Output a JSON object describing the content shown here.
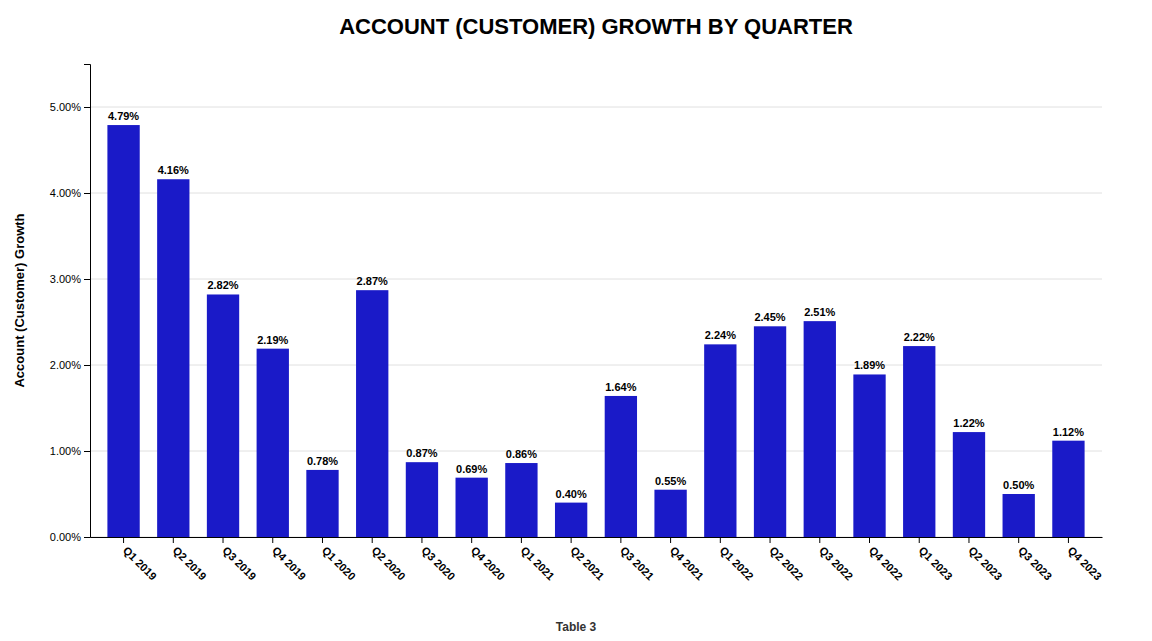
{
  "chart_data": {
    "type": "bar",
    "title": "ACCOUNT (CUSTOMER) GROWTH BY QUARTER",
    "ylabel": "Account (Customer) Growth",
    "annotations": [
      "Table 3"
    ],
    "categories": [
      "Q1 2019",
      "Q2 2019",
      "Q3 2019",
      "Q4 2019",
      "Q1 2020",
      "Q2 2020",
      "Q3 2020",
      "Q4 2020",
      "Q1 2021",
      "Q2 2021",
      "Q3 2021",
      "Q4 2021",
      "Q1 2022",
      "Q2 2022",
      "Q3 2022",
      "Q4 2022",
      "Q1 2023",
      "Q2 2023",
      "Q3 2023",
      "Q4 2023"
    ],
    "values": [
      4.79,
      4.16,
      2.82,
      2.19,
      0.78,
      2.87,
      0.87,
      0.69,
      0.86,
      0.4,
      1.64,
      0.55,
      2.24,
      2.45,
      2.51,
      1.89,
      2.22,
      1.22,
      0.5,
      1.12
    ],
    "value_labels": [
      "4.79%",
      "4.16%",
      "2.82%",
      "2.19%",
      "0.78%",
      "2.87%",
      "0.87%",
      "0.69%",
      "0.86%",
      "0.40%",
      "1.64%",
      "0.55%",
      "2.24%",
      "2.45%",
      "2.51%",
      "1.89%",
      "2.22%",
      "1.22%",
      "0.50%",
      "1.12%"
    ],
    "data_labels": true,
    "color": "#1a1ac8",
    "ylim": [
      0,
      5.5
    ],
    "yticks": [
      {
        "value": 0.0,
        "label": "0.00%"
      },
      {
        "value": 1.0,
        "label": "1.00%"
      },
      {
        "value": 2.0,
        "label": "2.00%"
      },
      {
        "value": 3.0,
        "label": "3.00%"
      },
      {
        "value": 4.0,
        "label": "4.00%"
      },
      {
        "value": 5.0,
        "label": "5.00%"
      }
    ],
    "grid": true
  }
}
